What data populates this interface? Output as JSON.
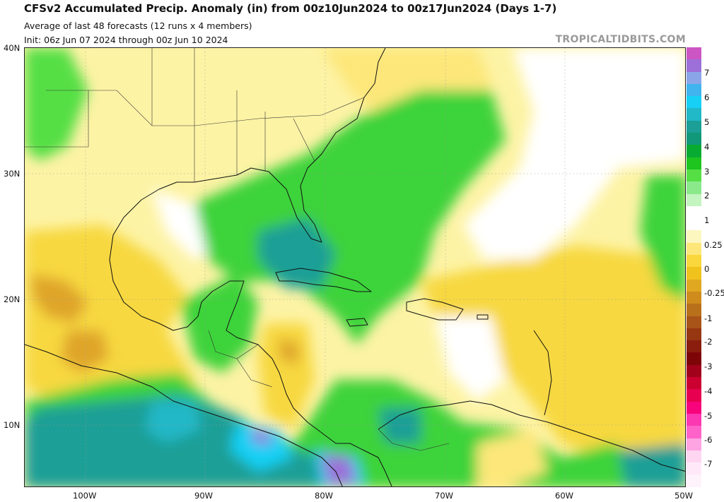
{
  "header": {
    "title": "CFSv2 Accumulated Precip. Anomaly (in) from 00z10Jun2024 to 00z17Jun2024 (Days 1-7)",
    "subtitle": "Average of last 48 forecasts (12 runs x 4 members)",
    "init": "Init: 06z Jun 07 2024 through 00z Jun 10 2024",
    "brand": "TROPICALTIDBITS.COM"
  },
  "axes": {
    "lat_labels": [
      "40N",
      "30N",
      "20N",
      "10N"
    ],
    "lon_labels": [
      "100W",
      "90W",
      "80W",
      "70W",
      "60W",
      "50W"
    ]
  },
  "colorbar": {
    "labels": [
      "7",
      "6",
      "5",
      "4",
      "3",
      "2",
      "1",
      "0.25",
      "0",
      "-0.25",
      "-1",
      "-2",
      "-3",
      "-4",
      "-5",
      "-6",
      "-7"
    ],
    "colors": [
      "#cc55c4",
      "#9c70d8",
      "#8aa6e8",
      "#3fb4ee",
      "#17d0f5",
      "#21b8c7",
      "#1b9f96",
      "#119878",
      "#08ab32",
      "#1ec51f",
      "#55df45",
      "#8be98c",
      "#c4f4c0",
      "#ffffff",
      "#ffffff",
      "#fcf7bf",
      "#fde77a",
      "#fad73c",
      "#f0c21c",
      "#e0a720",
      "#cf8c1d",
      "#b9701b",
      "#a85418",
      "#963712",
      "#8a1d0d",
      "#7e0507",
      "#a1011b",
      "#cc0030",
      "#e70050",
      "#f7047d",
      "#fb37b2",
      "#ff62c9",
      "#ffa4e3",
      "#ffd6f2",
      "#ffe9f8",
      "#fff3fb"
    ]
  }
}
